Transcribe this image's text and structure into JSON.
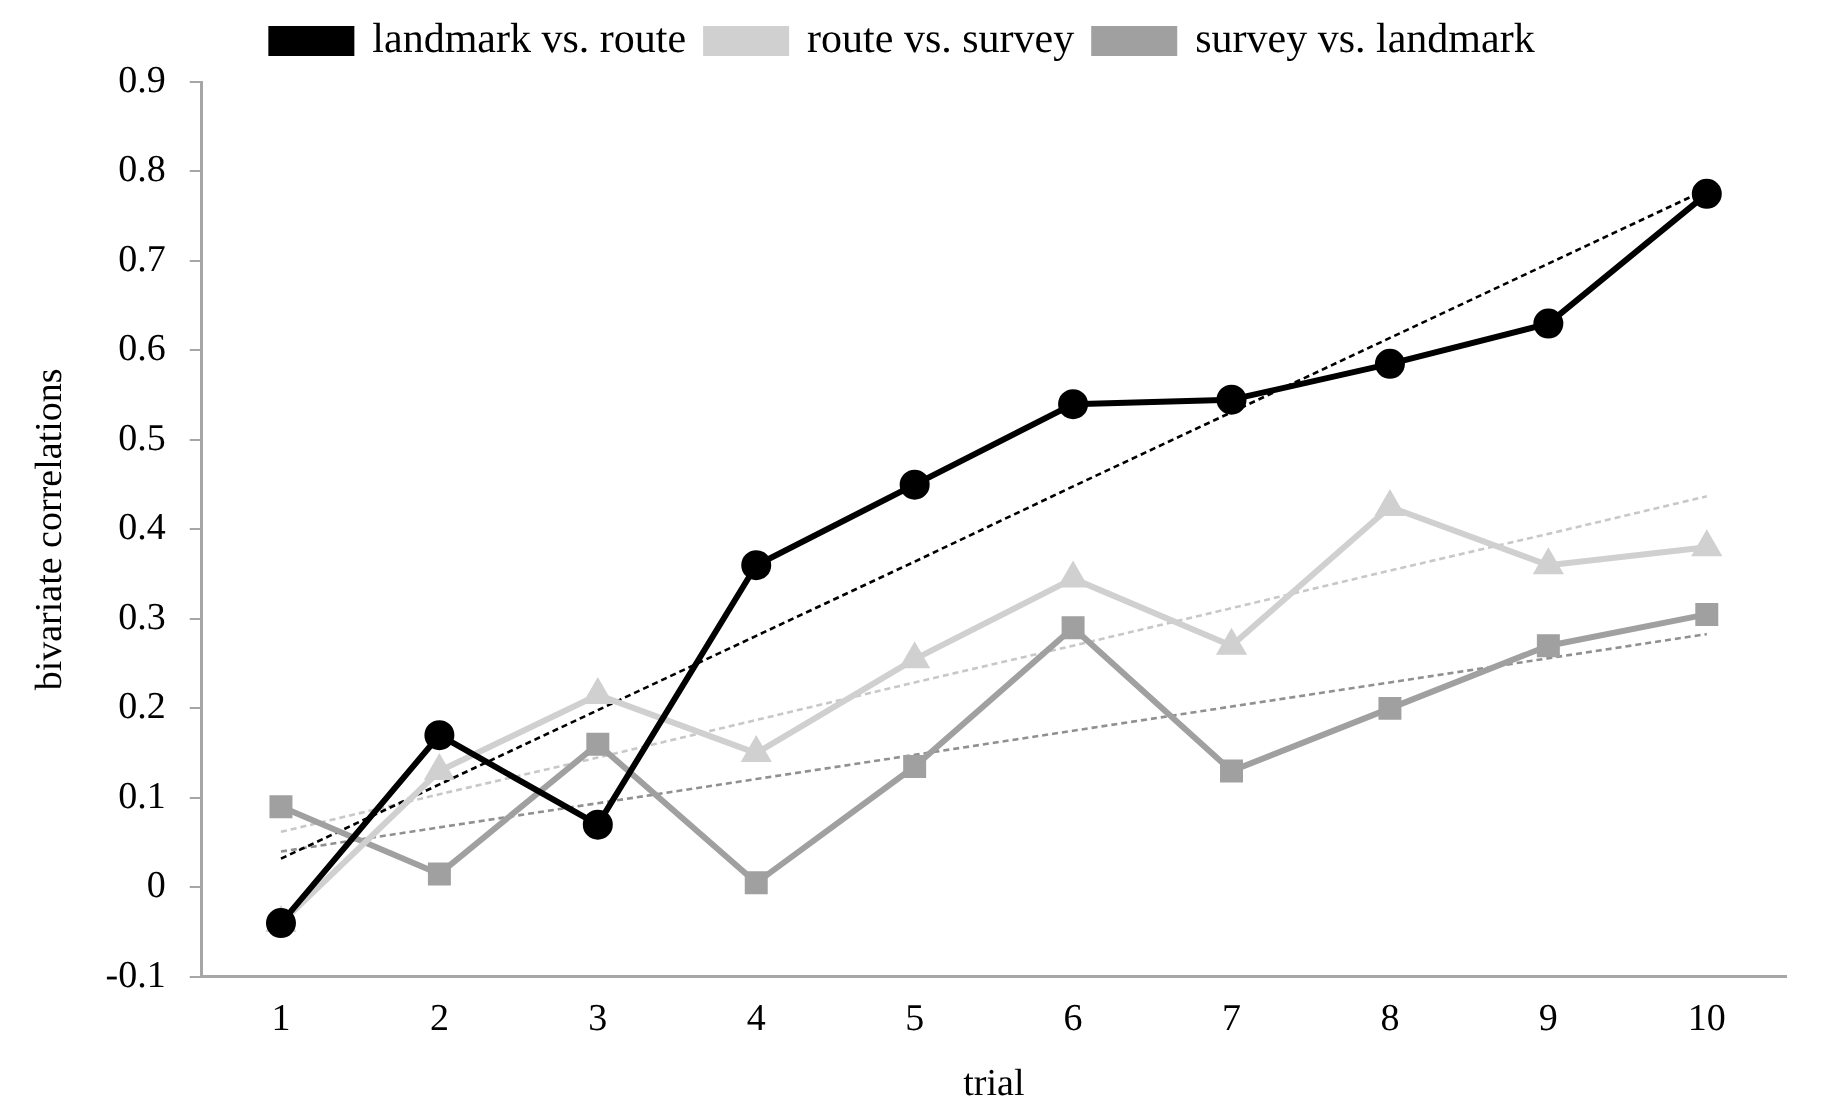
{
  "chart_data": {
    "type": "line",
    "xlabel": "trial",
    "ylabel": "bivariate correlations",
    "x": [
      1,
      2,
      3,
      4,
      5,
      6,
      7,
      8,
      9,
      10
    ],
    "xlim": [
      0.5,
      10.5
    ],
    "xticks": [
      1,
      2,
      3,
      4,
      5,
      6,
      7,
      8,
      9,
      10
    ],
    "ylim": [
      -0.1,
      0.9
    ],
    "yticks": [
      -0.1,
      0,
      0.1,
      0.2,
      0.3,
      0.4,
      0.5,
      0.6,
      0.7,
      0.8,
      0.9
    ],
    "grid": false,
    "legend": "top",
    "line_style": "solid",
    "series": [
      {
        "name": "landmark vs. route",
        "color": "#000000",
        "marker": "circle",
        "values": [
          -0.04,
          0.17,
          0.07,
          0.36,
          0.45,
          0.54,
          0.545,
          0.585,
          0.63,
          0.775
        ]
      },
      {
        "name": "route vs. survey",
        "color": "#d0d0d0",
        "marker": "triangle",
        "values": [
          -0.04,
          0.13,
          0.215,
          0.15,
          0.255,
          0.345,
          0.27,
          0.425,
          0.36,
          0.38
        ]
      },
      {
        "name": "survey vs. landmark",
        "color": "#a0a0a0",
        "marker": "square",
        "values": [
          0.09,
          0.015,
          0.16,
          0.005,
          0.135,
          0.29,
          0.13,
          0.2,
          0.27,
          0.305
        ]
      },
      {
        "type": "line",
        "color": "#000000",
        "line_style": "dashed",
        "values": [
          0.032,
          0.115,
          0.198,
          0.281,
          0.364,
          0.448,
          0.531,
          0.614,
          0.697,
          0.78
        ]
      },
      {
        "type": "line",
        "color": "#c8c8c8",
        "line_style": "dashed",
        "values": [
          0.062,
          0.104,
          0.145,
          0.187,
          0.229,
          0.27,
          0.312,
          0.354,
          0.395,
          0.437
        ]
      },
      {
        "type": "line",
        "color": "#909090",
        "line_style": "dashed",
        "values": [
          0.04,
          0.067,
          0.094,
          0.121,
          0.148,
          0.175,
          0.202,
          0.229,
          0.256,
          0.283
        ]
      }
    ]
  }
}
